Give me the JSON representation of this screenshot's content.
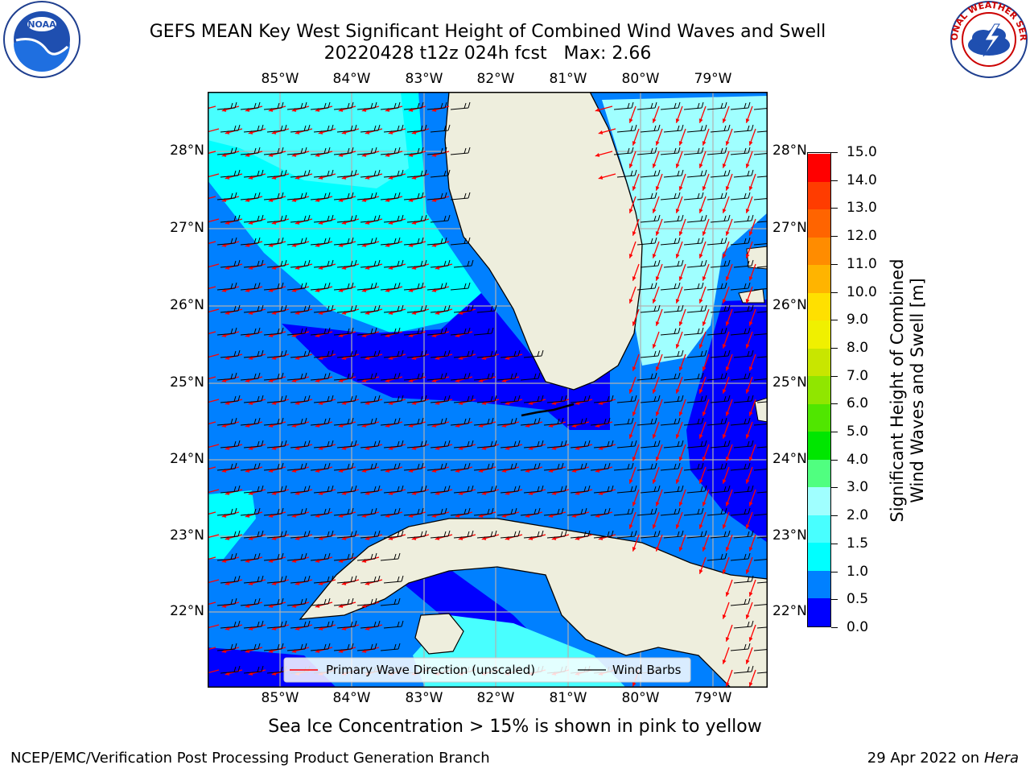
{
  "title": {
    "line1": "GEFS MEAN Key West Significant Height of Combined Wind Waves and Swell",
    "line2": "20220428 t12z 024h fcst   Max: 2.66"
  },
  "map": {
    "lat_labels": [
      "28°N",
      "27°N",
      "26°N",
      "25°N",
      "24°N",
      "23°N",
      "22°N"
    ],
    "lon_labels": [
      "85°W",
      "84°W",
      "83°W",
      "82°W",
      "81°W",
      "80°W",
      "79°W"
    ],
    "legend": {
      "wave_label": "Primary Wave Direction (unscaled)",
      "barb_label": "Wind Barbs"
    },
    "colors": {
      "land": "#eeeedd",
      "wave_arrow": "#ff0000",
      "barb": "#000000",
      "grid": "#b0b0b0"
    }
  },
  "colorbar": {
    "label": "Significant Height of Combined Wind Waves and Swell [m]",
    "label_line1": "Significant Height of Combined",
    "label_line2": "Wind Waves and Swell [m]",
    "ticks": [
      "0.0",
      "0.5",
      "1.0",
      "1.5",
      "2.0",
      "3.0",
      "4.0",
      "5.0",
      "6.0",
      "7.0",
      "8.0",
      "9.0",
      "10.0",
      "11.0",
      "12.0",
      "13.0",
      "14.0",
      "15.0"
    ],
    "colors": [
      "#0000ff",
      "#0080ff",
      "#00ffff",
      "#48ffff",
      "#a0ffff",
      "#50ff80",
      "#00e600",
      "#50e600",
      "#90e600",
      "#c8e600",
      "#f0f000",
      "#ffe000",
      "#ffb400",
      "#ff8c00",
      "#ff6400",
      "#ff3c00",
      "#ff0000"
    ]
  },
  "chart_data": {
    "type": "heatmap",
    "title": "GEFS MEAN Key West Significant Height of Combined Wind Waves and Swell",
    "subtitle": "20220428 t12z 024h fcst   Max: 2.66",
    "max_value": 2.66,
    "units": "m",
    "lon_range": [
      -86.0,
      -78.3
    ],
    "lat_range": [
      21.0,
      28.8
    ],
    "colorbar_levels": [
      0.0,
      0.5,
      1.0,
      1.5,
      2.0,
      3.0,
      4.0,
      5.0,
      6.0,
      7.0,
      8.0,
      9.0,
      10.0,
      11.0,
      12.0,
      13.0,
      14.0,
      15.0
    ]
  },
  "logos": {
    "left": "NOAA",
    "right": "NATIONAL WEATHER SERVICE"
  },
  "footer": {
    "sea_ice_note": "Sea Ice Concentration > 15% is shown in pink to yellow",
    "left": "NCEP/EMC/Verification Post Processing Product Generation Branch",
    "right_date": "29 Apr 2022 on ",
    "right_host": "Hera"
  }
}
